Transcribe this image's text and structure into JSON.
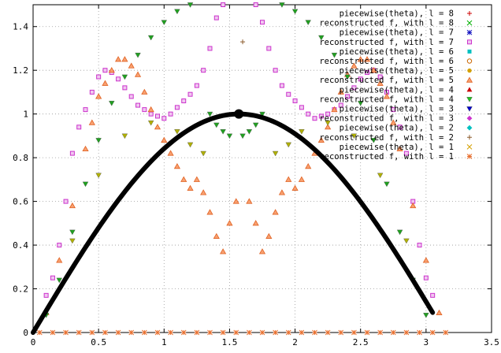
{
  "chart_data": {
    "type": "scatter",
    "title": "",
    "xlabel": "",
    "ylabel": "",
    "xlim": [
      0,
      3.5
    ],
    "ylim": [
      0,
      1.5
    ],
    "grid": true,
    "legend_placement": "top-right",
    "xticks": [
      "0",
      "0.5",
      "1",
      "1.5",
      "2",
      "2.5",
      "3",
      "3.5"
    ],
    "yticks": [
      "0",
      "0.2",
      "0.4",
      "0.6",
      "0.8",
      "1",
      "1.2",
      "1.4"
    ],
    "xtick_values": [
      0,
      0.5,
      1,
      1.5,
      2,
      2.5,
      3,
      3.5
    ],
    "ytick_values": [
      0,
      0.2,
      0.4,
      0.6,
      0.8,
      1.0,
      1.2,
      1.4
    ],
    "curve": {
      "description": "sin(theta)",
      "color": "#000000",
      "x_start": 0.0,
      "x_end": 3.05,
      "peak": [
        1.5708,
        1.0
      ]
    },
    "legend": [
      {
        "label": "piecewise(theta), l = 8",
        "color": "#cc0000",
        "marker": "plus"
      },
      {
        "label": "reconstructed f, with l = 8",
        "color": "#00b000",
        "marker": "cross"
      },
      {
        "label": "piecewise(theta), l = 7",
        "color": "#1010c0",
        "marker": "star"
      },
      {
        "label": "reconstructed f, with l = 7",
        "color": "#cc33cc",
        "marker": "box"
      },
      {
        "label": "piecewise(theta), l = 6",
        "color": "#00c0c0",
        "marker": "filled-box"
      },
      {
        "label": "reconstructed f, with l = 6",
        "color": "#cc6600",
        "marker": "circle"
      },
      {
        "label": "piecewise(theta), l = 5",
        "color": "#d4a000",
        "marker": "filled-circle"
      },
      {
        "label": "reconstructed f, with l = 5",
        "color": "#e87030",
        "marker": "triangle"
      },
      {
        "label": "piecewise(theta), l = 4",
        "color": "#cc0000",
        "marker": "filled-triangle"
      },
      {
        "label": "reconstructed f, with l = 4",
        "color": "#20c020",
        "marker": "filled-triangle-down"
      },
      {
        "label": "piecewise(theta), l = 3",
        "color": "#0000cc",
        "marker": "filled-triangle-down"
      },
      {
        "label": "reconstructed f, with l = 3",
        "color": "#cc33cc",
        "marker": "filled-diamond"
      },
      {
        "label": "piecewise(theta), l = 2",
        "color": "#00c0c0",
        "marker": "filled-diamond"
      },
      {
        "label": "reconstructed f, with l = 2",
        "color": "#8b5a2b",
        "marker": "plus"
      },
      {
        "label": "piecewise(theta), l = 1",
        "color": "#d4a000",
        "marker": "cross"
      },
      {
        "label": "reconstructed f, with l = 1",
        "color": "#e87030",
        "marker": "star"
      }
    ],
    "series": [
      {
        "ref": "reconstructed f, with l = 7",
        "color": "#cc33cc",
        "marker": "box",
        "points": [
          [
            0.1,
            0.17
          ],
          [
            0.15,
            0.25
          ],
          [
            0.2,
            0.4
          ],
          [
            0.25,
            0.6
          ],
          [
            0.3,
            0.82
          ],
          [
            0.35,
            0.94
          ],
          [
            0.4,
            1.02
          ],
          [
            0.45,
            1.1
          ],
          [
            0.5,
            1.17
          ],
          [
            0.55,
            1.2
          ],
          [
            0.6,
            1.19
          ],
          [
            0.65,
            1.16
          ],
          [
            0.7,
            1.12
          ],
          [
            0.75,
            1.08
          ],
          [
            0.8,
            1.04
          ],
          [
            0.85,
            1.02
          ],
          [
            0.9,
            1.0
          ],
          [
            0.95,
            0.99
          ],
          [
            1.0,
            0.98
          ],
          [
            1.05,
            1.0
          ],
          [
            1.1,
            1.03
          ],
          [
            1.15,
            1.06
          ],
          [
            1.2,
            1.09
          ],
          [
            1.25,
            1.13
          ],
          [
            1.3,
            1.2
          ],
          [
            1.35,
            1.3
          ],
          [
            1.4,
            1.44
          ],
          [
            1.45,
            1.5
          ],
          [
            1.7,
            1.5
          ],
          [
            1.75,
            1.42
          ],
          [
            1.8,
            1.3
          ],
          [
            1.85,
            1.2
          ],
          [
            1.9,
            1.13
          ],
          [
            1.95,
            1.09
          ],
          [
            2.0,
            1.06
          ],
          [
            2.05,
            1.03
          ],
          [
            2.1,
            1.0
          ],
          [
            2.15,
            0.98
          ],
          [
            2.2,
            0.99
          ],
          [
            2.25,
            1.0
          ],
          [
            2.3,
            1.02
          ],
          [
            2.35,
            1.04
          ],
          [
            2.4,
            1.08
          ],
          [
            2.45,
            1.12
          ],
          [
            2.5,
            1.16
          ],
          [
            2.55,
            1.19
          ],
          [
            2.6,
            1.2
          ],
          [
            2.65,
            1.17
          ],
          [
            2.7,
            1.1
          ],
          [
            2.75,
            1.02
          ],
          [
            2.8,
            0.94
          ],
          [
            2.85,
            0.82
          ],
          [
            2.9,
            0.6
          ],
          [
            2.95,
            0.4
          ],
          [
            3.0,
            0.25
          ],
          [
            3.05,
            0.17
          ]
        ]
      },
      {
        "ref": "reconstructed f, with l = 5",
        "color": "#e87030",
        "marker": "triangle",
        "points": [
          [
            0.1,
            0.09
          ],
          [
            0.2,
            0.33
          ],
          [
            0.3,
            0.58
          ],
          [
            0.4,
            0.84
          ],
          [
            0.45,
            0.96
          ],
          [
            0.5,
            1.08
          ],
          [
            0.55,
            1.14
          ],
          [
            0.6,
            1.2
          ],
          [
            0.65,
            1.25
          ],
          [
            0.7,
            1.25
          ],
          [
            0.75,
            1.22
          ],
          [
            0.8,
            1.18
          ],
          [
            0.85,
            1.1
          ],
          [
            0.9,
            1.02
          ],
          [
            0.95,
            0.94
          ],
          [
            1.0,
            0.88
          ],
          [
            1.05,
            0.82
          ],
          [
            1.1,
            0.76
          ],
          [
            1.15,
            0.7
          ],
          [
            1.2,
            0.66
          ],
          [
            1.25,
            0.7
          ],
          [
            1.3,
            0.64
          ],
          [
            1.35,
            0.55
          ],
          [
            1.4,
            0.44
          ],
          [
            1.45,
            0.37
          ],
          [
            1.5,
            0.5
          ],
          [
            1.55,
            0.6
          ],
          [
            1.65,
            0.6
          ],
          [
            1.7,
            0.5
          ],
          [
            1.75,
            0.37
          ],
          [
            1.8,
            0.44
          ],
          [
            1.85,
            0.55
          ],
          [
            1.9,
            0.64
          ],
          [
            1.95,
            0.7
          ],
          [
            2.0,
            0.66
          ],
          [
            2.05,
            0.7
          ],
          [
            2.1,
            0.76
          ],
          [
            2.15,
            0.82
          ],
          [
            2.2,
            0.88
          ],
          [
            2.25,
            0.94
          ],
          [
            2.3,
            1.02
          ],
          [
            2.35,
            1.1
          ],
          [
            2.4,
            1.18
          ],
          [
            2.45,
            1.22
          ],
          [
            2.5,
            1.25
          ],
          [
            2.55,
            1.25
          ],
          [
            2.6,
            1.2
          ],
          [
            2.65,
            1.14
          ],
          [
            2.7,
            1.08
          ],
          [
            2.75,
            0.96
          ],
          [
            2.8,
            0.84
          ],
          [
            2.9,
            0.58
          ],
          [
            3.0,
            0.33
          ],
          [
            3.1,
            0.09
          ]
        ]
      },
      {
        "ref": "reconstructed f, with l = 8",
        "color": "#20a020",
        "marker": "filled-triangle-down",
        "points": [
          [
            0.1,
            0.08
          ],
          [
            0.2,
            0.24
          ],
          [
            0.3,
            0.46
          ],
          [
            0.4,
            0.68
          ],
          [
            0.5,
            0.88
          ],
          [
            0.6,
            1.05
          ],
          [
            0.7,
            1.17
          ],
          [
            0.8,
            1.27
          ],
          [
            0.9,
            1.35
          ],
          [
            1.0,
            1.42
          ],
          [
            1.1,
            1.47
          ],
          [
            1.2,
            1.5
          ],
          [
            1.35,
            1.0
          ],
          [
            1.4,
            0.95
          ],
          [
            1.45,
            0.92
          ],
          [
            1.5,
            0.9
          ],
          [
            1.6,
            0.9
          ],
          [
            1.65,
            0.92
          ],
          [
            1.7,
            0.95
          ],
          [
            1.75,
            1.0
          ],
          [
            1.9,
            1.5
          ],
          [
            2.0,
            1.47
          ],
          [
            2.1,
            1.42
          ],
          [
            2.2,
            1.35
          ],
          [
            2.3,
            1.27
          ],
          [
            2.4,
            1.17
          ],
          [
            2.5,
            1.05
          ],
          [
            2.6,
            0.88
          ],
          [
            2.7,
            0.68
          ],
          [
            2.8,
            0.46
          ],
          [
            2.9,
            0.24
          ],
          [
            3.0,
            0.08
          ]
        ]
      },
      {
        "ref": "reconstructed f, with l = 6",
        "color": "#b0b000",
        "marker": "filled-triangle-down",
        "points": [
          [
            0.3,
            0.42
          ],
          [
            0.5,
            0.72
          ],
          [
            0.7,
            0.9
          ],
          [
            0.9,
            0.96
          ],
          [
            1.1,
            0.92
          ],
          [
            1.2,
            0.86
          ],
          [
            1.3,
            0.82
          ],
          [
            1.85,
            0.82
          ],
          [
            1.95,
            0.86
          ],
          [
            2.05,
            0.92
          ],
          [
            2.25,
            0.96
          ],
          [
            2.45,
            0.9
          ],
          [
            2.65,
            0.72
          ],
          [
            2.85,
            0.42
          ]
        ]
      },
      {
        "ref": "zero line markers",
        "color": "#e87030",
        "marker": "star",
        "points": [
          [
            0.05,
            0.0
          ],
          [
            0.15,
            0.0
          ],
          [
            0.25,
            0.0
          ],
          [
            0.35,
            0.0
          ],
          [
            0.45,
            0.0
          ],
          [
            0.55,
            0.0
          ],
          [
            0.65,
            0.0
          ],
          [
            0.75,
            0.0
          ],
          [
            0.85,
            0.0
          ],
          [
            0.95,
            0.0
          ],
          [
            1.05,
            0.0
          ],
          [
            1.15,
            0.0
          ],
          [
            1.25,
            0.0
          ],
          [
            1.35,
            0.0
          ],
          [
            1.45,
            0.0
          ],
          [
            1.55,
            0.0
          ],
          [
            1.65,
            0.0
          ],
          [
            1.75,
            0.0
          ],
          [
            1.85,
            0.0
          ],
          [
            1.95,
            0.0
          ],
          [
            2.05,
            0.0
          ],
          [
            2.15,
            0.0
          ],
          [
            2.25,
            0.0
          ],
          [
            2.35,
            0.0
          ],
          [
            2.45,
            0.0
          ],
          [
            2.55,
            0.0
          ],
          [
            2.65,
            0.0
          ],
          [
            2.75,
            0.0
          ],
          [
            2.85,
            0.0
          ],
          [
            2.95,
            0.0
          ],
          [
            3.05,
            0.0
          ],
          [
            3.15,
            0.0
          ]
        ]
      },
      {
        "ref": "top plus marker",
        "color": "#8b5a2b",
        "marker": "plus",
        "points": [
          [
            1.6,
            1.33
          ]
        ]
      }
    ]
  }
}
